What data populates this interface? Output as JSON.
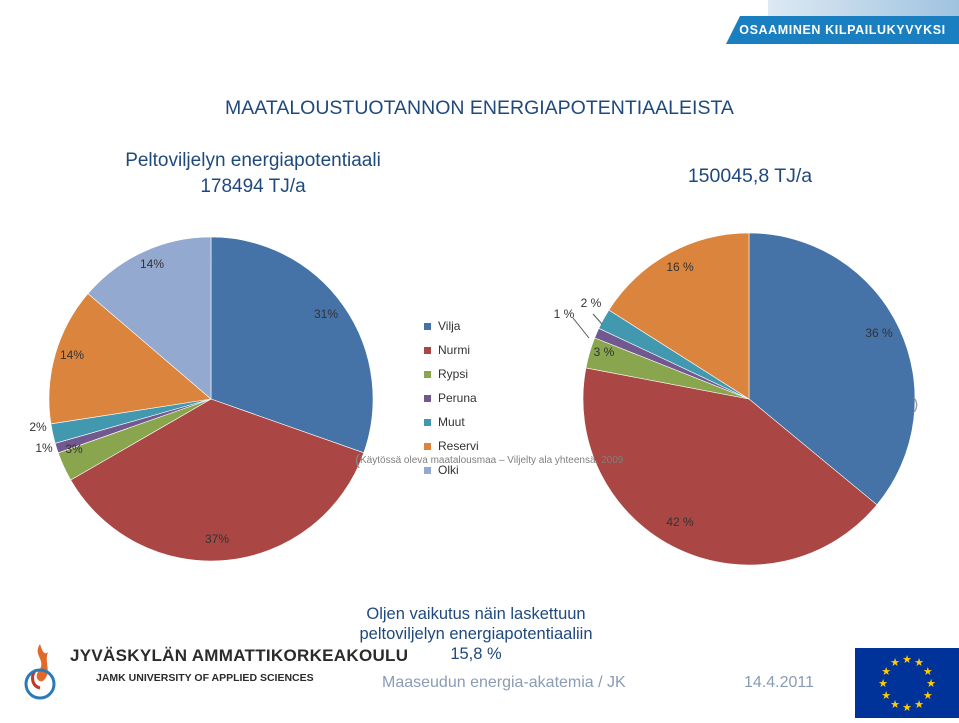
{
  "banner": {
    "text": "OSAAMINEN KILPAILUKYVYKSI"
  },
  "main_title": "MAATALOUSTUOTANNON ENERGIAPOTENTIAALEISTA",
  "left_title": {
    "line1": "Peltoviljelyn energiapotentiaali",
    "line2": "178494 TJ/a"
  },
  "right_title": "150045,8 TJ/a",
  "chart_data": [
    {
      "type": "pie",
      "title": "Peltoviljelyn energiapotentiaali 178494 TJ/a",
      "categories": [
        "Vilja",
        "Nurmi",
        "Rypsi",
        "Peruna",
        "Muut",
        "Reservi",
        "Olki"
      ],
      "values": [
        31,
        37,
        3,
        1,
        2,
        14,
        14
      ],
      "labels": [
        "31%",
        "37%",
        "3%",
        "1%",
        "2%",
        "14%",
        "14%"
      ],
      "colors": [
        "#4572a7",
        "#aa4643",
        "#89a54e",
        "#71588f",
        "#4198af",
        "#db843d",
        "#93a9cf"
      ]
    },
    {
      "type": "pie",
      "title": "150045,8 TJ/a",
      "categories": [
        "Vilja",
        "Nurmi",
        "Rypsi",
        "Peruna",
        "Muut",
        "Reservi"
      ],
      "values": [
        36,
        42,
        3,
        1,
        2,
        16
      ],
      "labels": [
        "36 %",
        "42 %",
        "3 %",
        "1 %",
        "2 %",
        "16 %"
      ],
      "colors": [
        "#4572a7",
        "#aa4643",
        "#89a54e",
        "#71588f",
        "#4198af",
        "#db843d"
      ]
    }
  ],
  "legend": [
    {
      "label": "Vilja",
      "color": "#4572a7"
    },
    {
      "label": "Nurmi",
      "color": "#aa4643"
    },
    {
      "label": "Rypsi",
      "color": "#89a54e"
    },
    {
      "label": "Peruna",
      "color": "#71588f"
    },
    {
      "label": "Muut",
      "color": "#4198af"
    },
    {
      "label": "Reservi",
      "color": "#db843d"
    },
    {
      "label": "Olki",
      "color": "#93a9cf"
    }
  ],
  "bracket_note": "Käytössä oleva maatalousmaa – Viljelty ala yhteensä, 2009",
  "footer": {
    "note_line1": "Oljen vaikutus näin laskettuun",
    "note_line2": "peltoviljelyn energiapotentiaaliin",
    "note_line3": "15,8 %",
    "academy": "Maaseudun energia-akatemia / JK",
    "date": "14.4.2011"
  },
  "logo": {
    "name": "JYVÄSKYLÄN AMMATTIKORKEAKOULU",
    "sub": "JAMK UNIVERSITY OF APPLIED SCIENCES"
  }
}
